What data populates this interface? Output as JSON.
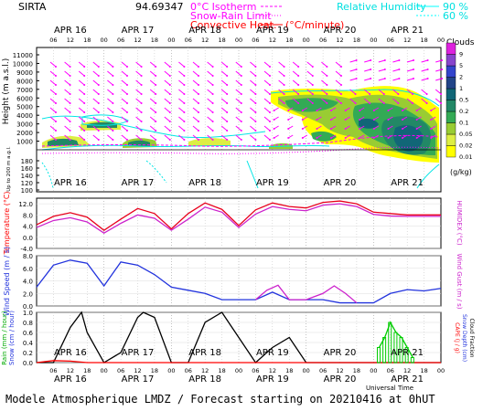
{
  "header": {
    "station": "SIRTA",
    "coords": "94.69347",
    "legend_left": [
      {
        "label": "0°C Isotherm",
        "color": "#ff00ff"
      },
      {
        "label": "Snow-Rain Limit",
        "color": "#ff00ff"
      },
      {
        "label": "Convective Heat.",
        "unit": "(°C/minute)",
        "color": "#ff0000"
      }
    ],
    "legend_right": [
      {
        "label": "Relative Humidity",
        "value": "90 %",
        "color": "#00ffff"
      },
      {
        "label": "",
        "value": "60 %",
        "color": "#00ffff"
      }
    ]
  },
  "days": [
    "APR 16",
    "APR 17",
    "APR 18",
    "APR 19",
    "APR 20",
    "APR 21"
  ],
  "hours": [
    "06",
    "12",
    "18",
    "00"
  ],
  "footer": {
    "model_line": "Modele Atmospherique LMDZ / Forecast starting on 20210416 at 0hUT",
    "xlabel": "Universal Time"
  },
  "chart_data": [
    {
      "type": "heatmap",
      "title": "Clouds",
      "ylabel": "Height (m a.s.l.)",
      "ylabel_low": "Up to 200 m a.g.l.",
      "yticks_upper": [
        11000,
        10000,
        9000,
        8000,
        7000,
        6000,
        5000,
        4000,
        3000,
        2000,
        1000
      ],
      "yticks_lower": [
        180,
        160,
        140,
        120,
        100
      ],
      "colorbar": {
        "title": "Clouds",
        "unit": "(g/kg)",
        "levels": [
          0.01,
          0.02,
          0.05,
          0.1,
          0.2,
          0.5,
          1,
          2,
          5,
          9
        ],
        "colors": [
          "#ffff00",
          "#ddee44",
          "#99cc33",
          "#33aa55",
          "#228866",
          "#116677",
          "#224488",
          "#3344cc",
          "#8844cc",
          "#dd22dd"
        ]
      }
    },
    {
      "type": "line",
      "ylabel": "Temperature (°C)",
      "ylabel_right": "HUMIDEX (°C)",
      "ylim": [
        -4,
        14
      ],
      "yticks": [
        12.0,
        8.0,
        4.0,
        0.0,
        -4.0
      ],
      "series": [
        {
          "name": "Temperature",
          "color": "#e8001c",
          "x": [
            0,
            6,
            12,
            18,
            24,
            30,
            36,
            42,
            48,
            54,
            60,
            66,
            72,
            78,
            84,
            90,
            96,
            102,
            108,
            114,
            120,
            126,
            132,
            138,
            144
          ],
          "values": [
            4.5,
            7.5,
            8.8,
            7.2,
            2.5,
            6.5,
            10.3,
            8.5,
            3.0,
            8.5,
            12.3,
            10.0,
            4.2,
            9.8,
            12.3,
            11.0,
            10.5,
            12.5,
            13.0,
            12.0,
            9.0,
            8.5,
            8.0,
            8.0,
            8.0
          ]
        },
        {
          "name": "HUMIDEX",
          "color": "#cc22cc",
          "x": [
            0,
            6,
            12,
            18,
            24,
            30,
            36,
            42,
            48,
            54,
            60,
            66,
            72,
            78,
            84,
            90,
            96,
            102,
            108,
            114,
            120,
            126,
            132,
            138,
            144
          ],
          "values": [
            3.5,
            6.0,
            7.0,
            5.5,
            1.5,
            5.0,
            8.0,
            6.8,
            2.5,
            6.5,
            10.8,
            9.0,
            3.5,
            8.3,
            11.0,
            10.0,
            9.5,
            11.5,
            12.0,
            11.0,
            8.2,
            7.6,
            7.5,
            7.5,
            7.5
          ]
        }
      ]
    },
    {
      "type": "line",
      "ylabel": "Wind Speed (m / s)",
      "ylabel_right": "Wind Gust (m / s)",
      "ylim": [
        0,
        8
      ],
      "yticks": [
        8.0,
        6.0,
        4.0,
        2.0,
        0.0
      ],
      "series": [
        {
          "name": "Wind Speed",
          "color": "#2233dd",
          "x": [
            0,
            6,
            12,
            18,
            24,
            30,
            36,
            42,
            48,
            54,
            60,
            66,
            72,
            78,
            84,
            90,
            96,
            102,
            108,
            114,
            120,
            126,
            132,
            138,
            144
          ],
          "values": [
            3.0,
            6.5,
            7.3,
            6.8,
            3.2,
            7.0,
            6.5,
            5.0,
            3.0,
            2.5,
            2.0,
            1.0,
            1.0,
            1.0,
            2.2,
            1.0,
            1.0,
            1.0,
            0.5,
            0.5,
            0.5,
            2.0,
            2.6,
            2.4,
            2.8
          ]
        },
        {
          "name": "Wind Gust",
          "color": "#cc22cc",
          "x": [
            78,
            82,
            86,
            90,
            96,
            102,
            106,
            110,
            114
          ],
          "values": [
            1.0,
            2.5,
            3.3,
            1.0,
            1.0,
            2.0,
            3.2,
            2.0,
            0.5
          ]
        }
      ]
    },
    {
      "type": "line",
      "ylabel": "Rain (mm / hour)",
      "ylabel2": "Snow (cm / hour)",
      "ylabel_right": "CAPE (J / g)",
      "ylabel_right2": "Snow Depth (cm)",
      "ylabel_right3": "Cloud Fraction",
      "ylim": [
        0,
        1.0
      ],
      "yticks": [
        1.0,
        0.8,
        0.6,
        0.4,
        0.2,
        0.0
      ],
      "series": [
        {
          "name": "Cloud Fraction",
          "color": "#000000",
          "x": [
            0,
            6,
            12,
            16,
            18,
            24,
            30,
            36,
            38,
            42,
            48,
            54,
            60,
            66,
            72,
            78,
            84,
            90,
            96,
            102,
            108,
            114,
            120,
            126,
            132,
            138,
            144
          ],
          "values": [
            0.0,
            0.0,
            0.7,
            1.0,
            0.6,
            0.0,
            0.2,
            0.9,
            1.0,
            0.9,
            0.0,
            0.0,
            0.8,
            1.0,
            0.5,
            0.0,
            0.3,
            0.5,
            0.0,
            0.0,
            0.0,
            0.0,
            0.0,
            0.0,
            0.0,
            0.0,
            0.0
          ]
        },
        {
          "name": "Rain",
          "color": "#00cc00",
          "x": [
            122,
            124,
            126,
            128,
            130,
            132,
            134
          ],
          "values": [
            0.3,
            0.5,
            0.8,
            0.6,
            0.5,
            0.3,
            0.1
          ]
        },
        {
          "name": "CAPE",
          "color": "#ff0000",
          "x": [
            0,
            6,
            12,
            18,
            24,
            144
          ],
          "values": [
            0.0,
            0.04,
            0.03,
            0.0,
            0.0,
            0.0
          ]
        }
      ]
    }
  ]
}
